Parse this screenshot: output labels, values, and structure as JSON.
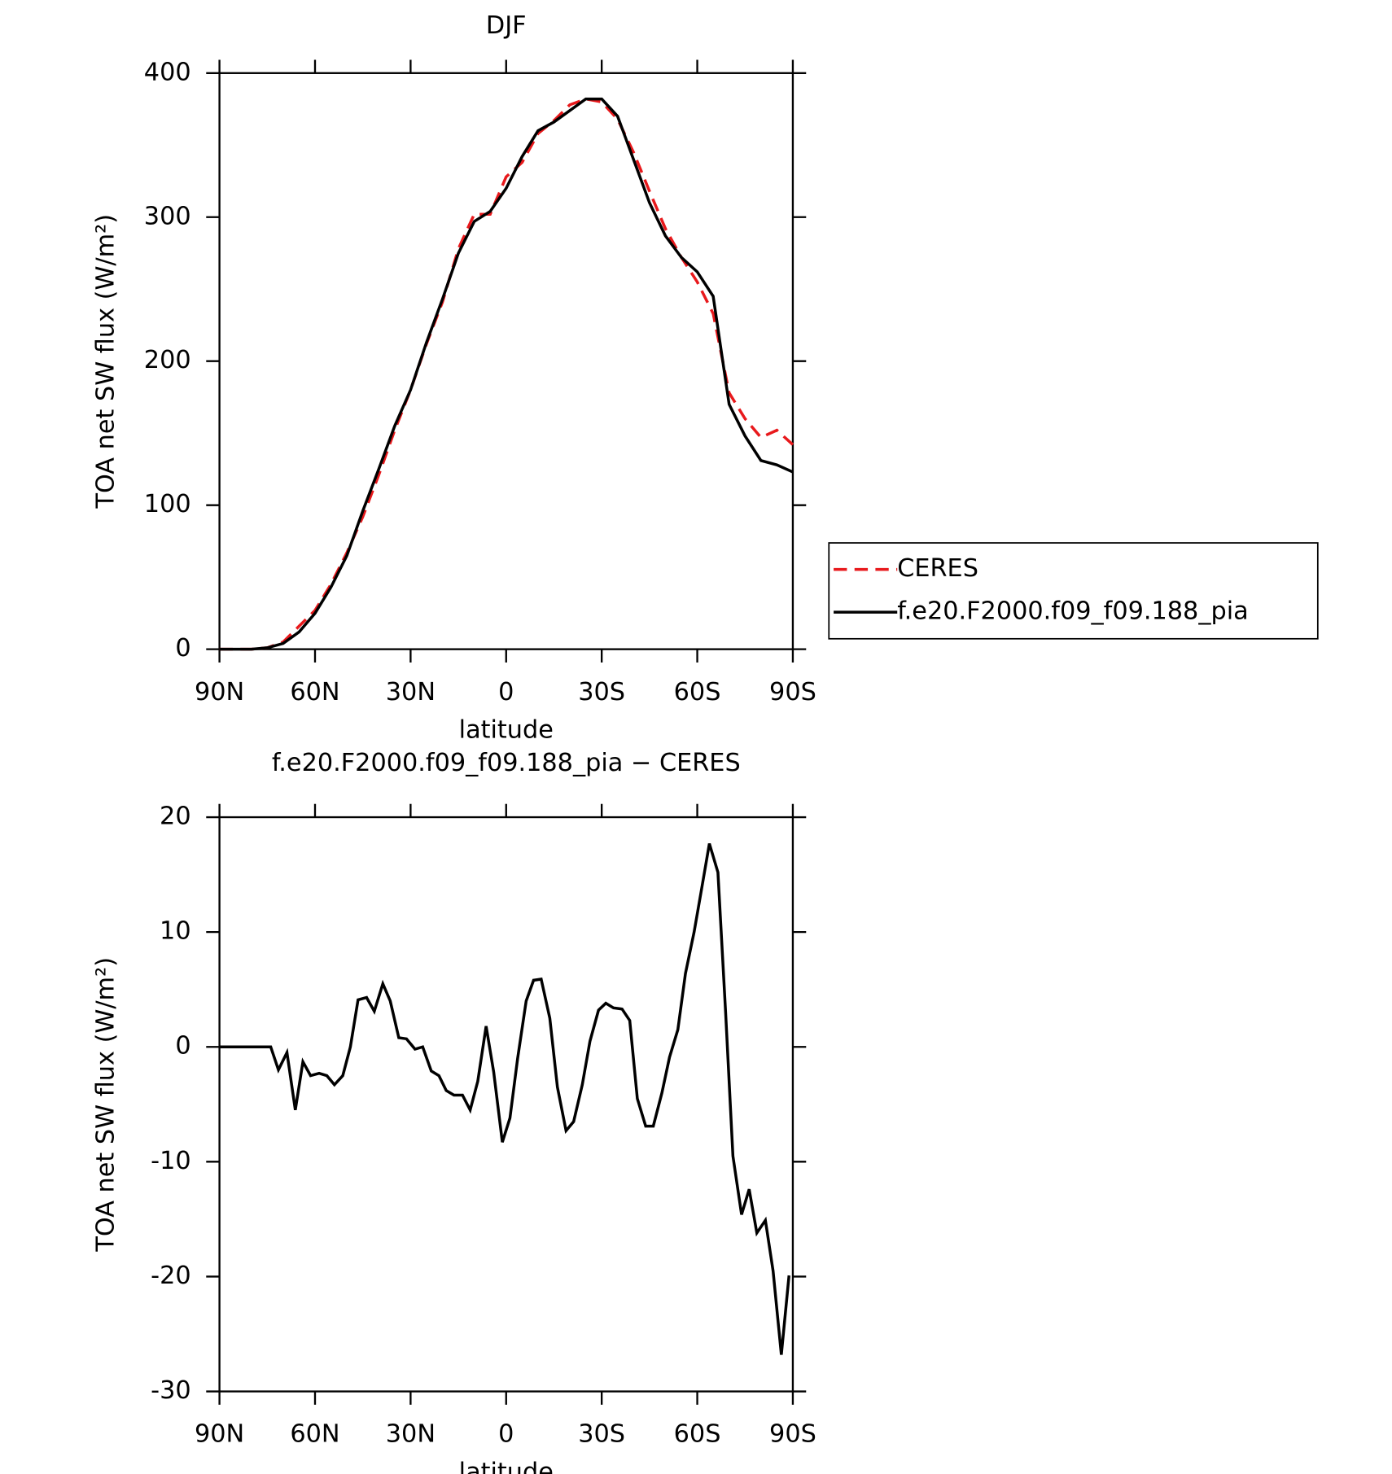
{
  "chart_data": [
    {
      "type": "line",
      "title": "DJF",
      "x_label": "latitude",
      "y_label": "TOA net SW flux (W/m²)",
      "x": [
        90,
        85,
        80,
        75,
        70,
        65,
        60,
        55,
        50,
        45,
        40,
        35,
        30,
        25,
        20,
        15,
        10,
        5,
        0,
        -5,
        -10,
        -15,
        -20,
        -25,
        -30,
        -35,
        -40,
        -45,
        -50,
        -55,
        -60,
        -65,
        -70,
        -75,
        -80,
        -85,
        -90
      ],
      "series": [
        {
          "name": "CERES",
          "color": "#e8191c",
          "dash": "dashed",
          "values": [
            0,
            0,
            0,
            1,
            5,
            16,
            27,
            45,
            67,
            92,
            121,
            152,
            180,
            212,
            241,
            278,
            302,
            302,
            328,
            338,
            358,
            367,
            378,
            382,
            380,
            368,
            345,
            318,
            292,
            272,
            255,
            233,
            178,
            160,
            147,
            152,
            142
          ]
        },
        {
          "name": "f.e20.F2000.f09_f09.188_pia",
          "color": "#000000",
          "dash": "solid",
          "values": [
            0,
            0,
            0,
            1,
            4,
            12,
            25,
            43,
            65,
            96,
            125,
            155,
            180,
            213,
            243,
            275,
            297,
            304,
            320,
            342,
            360,
            366,
            374,
            382,
            382,
            370,
            340,
            310,
            287,
            272,
            262,
            245,
            170,
            148,
            131,
            128,
            123
          ]
        }
      ],
      "xlim": [
        90,
        -90
      ],
      "xticks": [
        {
          "value": 90,
          "label": "90N"
        },
        {
          "value": 60,
          "label": "60N"
        },
        {
          "value": 30,
          "label": "30N"
        },
        0,
        {
          "value": -30,
          "label": "30S"
        },
        {
          "value": -60,
          "label": "60S"
        },
        {
          "value": -90,
          "label": "90S"
        }
      ],
      "ylim": [
        0,
        400
      ],
      "yticks": [
        0,
        100,
        200,
        300,
        400
      ],
      "legend": "outside right"
    },
    {
      "type": "line",
      "title": "f.e20.F2000.f09_f09.188_pia − CERES",
      "x_label": "latitude",
      "y_label": "TOA net SW flux (W/m²)",
      "x": [
        90,
        81.4,
        76.4,
        73.9,
        71.5,
        68.8,
        66.2,
        63.8,
        61.4,
        58.7,
        56.3,
        53.9,
        51.3,
        48.9,
        46.5,
        43.8,
        41.4,
        38.7,
        36.4,
        33.7,
        31.3,
        28.6,
        26.2,
        23.5,
        21.1,
        18.8,
        16.4,
        13.7,
        11.3,
        8.9,
        6.3,
        3.9,
        1.2,
        -1.2,
        -3.6,
        -6.3,
        -8.6,
        -11,
        -13.7,
        -16.1,
        -18.8,
        -21.2,
        -23.9,
        -26.3,
        -29,
        -31.3,
        -33.7,
        -36.4,
        -38.8,
        -41.2,
        -43.8,
        -46.2,
        -48.9,
        -51.3,
        -53.9,
        -56.3,
        -59,
        -61.4,
        -63.8,
        -66.5,
        -68.9,
        -71.2,
        -73.9,
        -76.3,
        -78.7,
        -81.4,
        -83.8,
        -86.4,
        -88.8
      ],
      "color": "#000000",
      "values": [
        0,
        0,
        0,
        0,
        -2,
        -0.5,
        -5.5,
        -1.3,
        -2.5,
        -2.3,
        -2.5,
        -3.3,
        -2.5,
        0,
        4.1,
        4.3,
        3.1,
        5.5,
        4,
        0.8,
        0.7,
        -0.2,
        0,
        -2.1,
        -2.5,
        -3.8,
        -4.2,
        -4.2,
        -5.5,
        -3,
        1.8,
        -2.2,
        -8.3,
        -6.2,
        -1,
        4,
        5.8,
        5.9,
        2.5,
        -3.5,
        -7.3,
        -6.5,
        -3.3,
        0.5,
        3.2,
        3.8,
        3.4,
        3.3,
        2.3,
        -4.5,
        -6.9,
        -6.9,
        -4,
        -0.9,
        1.5,
        6.4,
        10,
        13.8,
        17.7,
        15.2,
        3,
        -9.5,
        -14.6,
        -12.4,
        -16.2,
        -15.1,
        -19.5,
        -26.8,
        -19.9
      ],
      "xlim": [
        90,
        -90
      ],
      "xticks": [
        {
          "value": 90,
          "label": "90N"
        },
        {
          "value": 60,
          "label": "60N"
        },
        {
          "value": 30,
          "label": "30N"
        },
        0,
        {
          "value": -30,
          "label": "30S"
        },
        {
          "value": -60,
          "label": "60S"
        },
        {
          "value": -90,
          "label": "90S"
        }
      ],
      "ylim": [
        -30,
        20
      ],
      "yticks": [
        -30,
        -20,
        -10,
        0,
        10,
        20
      ]
    }
  ]
}
